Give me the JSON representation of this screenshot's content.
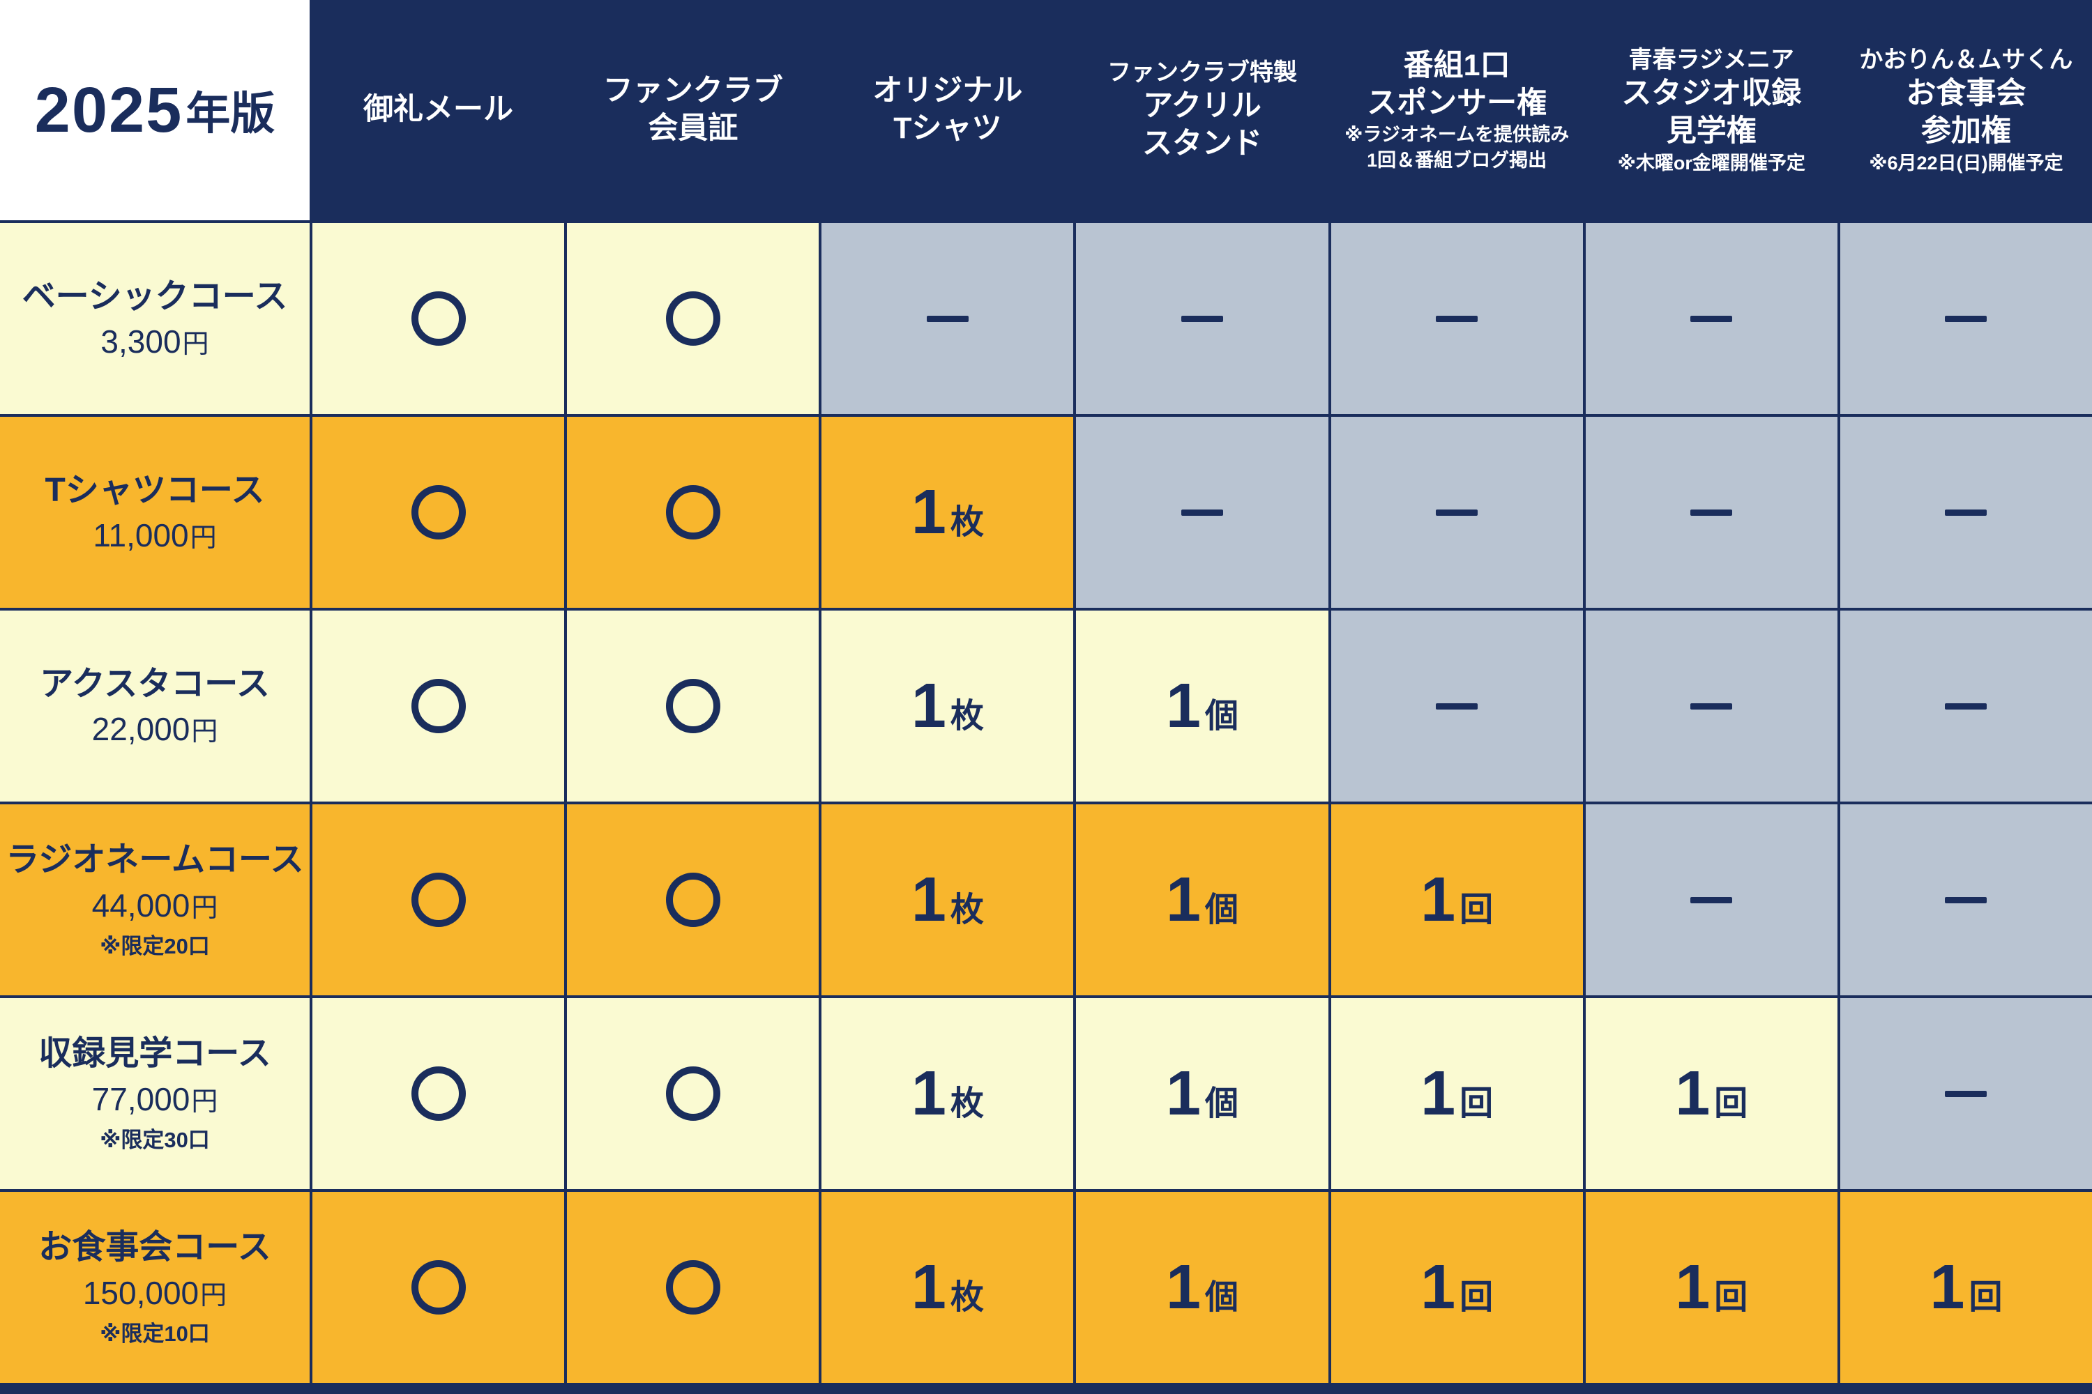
{
  "title": {
    "year": "2025",
    "suffix": "年版"
  },
  "colors": {
    "navy": "#1a2d5c",
    "cream": "#fafad2",
    "orange": "#f8b62d",
    "gray": "#b9c4d2",
    "header_text": "#ffffff"
  },
  "glyphs": {
    "dash": "—",
    "circle": "○"
  },
  "chart_data": {
    "type": "table",
    "title": "2025年版",
    "columns": [
      {
        "lines": [
          "御礼メール"
        ]
      },
      {
        "lines": [
          "ファンクラブ",
          "会員証"
        ]
      },
      {
        "lines": [
          "オリジナル",
          "Tシャツ"
        ]
      },
      {
        "top": "ファンクラブ特製",
        "lines": [
          "アクリル",
          "スタンド"
        ]
      },
      {
        "lines": [
          "番組1口",
          "スポンサー権"
        ],
        "notes": [
          "※ラジオネームを提供読み",
          "1回＆番組ブログ掲出"
        ]
      },
      {
        "top": "青春ラジメニア",
        "lines": [
          "スタジオ収録",
          "見学権"
        ],
        "notes": [
          "※木曜or金曜開催予定"
        ]
      },
      {
        "top": "かおりん＆ムサくん",
        "lines": [
          "お食事会",
          "参加権"
        ],
        "notes": [
          "※6月22日(日)開催予定"
        ]
      }
    ],
    "rows": [
      {
        "name": "ベーシックコース",
        "price": "3,300",
        "price_unit": "円",
        "limit": "",
        "theme": "cream",
        "cells": [
          {
            "t": "circle"
          },
          {
            "t": "circle"
          },
          {
            "t": "dash"
          },
          {
            "t": "dash"
          },
          {
            "t": "dash"
          },
          {
            "t": "dash"
          },
          {
            "t": "dash"
          }
        ]
      },
      {
        "name": "Tシャツコース",
        "price": "11,000",
        "price_unit": "円",
        "limit": "",
        "theme": "orange",
        "cells": [
          {
            "t": "circle"
          },
          {
            "t": "circle"
          },
          {
            "t": "num",
            "n": "1",
            "u": "枚"
          },
          {
            "t": "dash"
          },
          {
            "t": "dash"
          },
          {
            "t": "dash"
          },
          {
            "t": "dash"
          }
        ]
      },
      {
        "name": "アクスタコース",
        "price": "22,000",
        "price_unit": "円",
        "limit": "",
        "theme": "cream",
        "cells": [
          {
            "t": "circle"
          },
          {
            "t": "circle"
          },
          {
            "t": "num",
            "n": "1",
            "u": "枚"
          },
          {
            "t": "num",
            "n": "1",
            "u": "個"
          },
          {
            "t": "dash"
          },
          {
            "t": "dash"
          },
          {
            "t": "dash"
          }
        ]
      },
      {
        "name": "ラジオネームコース",
        "price": "44,000",
        "price_unit": "円",
        "limit": "※限定20口",
        "theme": "orange",
        "cells": [
          {
            "t": "circle"
          },
          {
            "t": "circle"
          },
          {
            "t": "num",
            "n": "1",
            "u": "枚"
          },
          {
            "t": "num",
            "n": "1",
            "u": "個"
          },
          {
            "t": "num",
            "n": "1",
            "u": "回"
          },
          {
            "t": "dash"
          },
          {
            "t": "dash"
          }
        ]
      },
      {
        "name": "収録見学コース",
        "price": "77,000",
        "price_unit": "円",
        "limit": "※限定30口",
        "theme": "cream",
        "cells": [
          {
            "t": "circle"
          },
          {
            "t": "circle"
          },
          {
            "t": "num",
            "n": "1",
            "u": "枚"
          },
          {
            "t": "num",
            "n": "1",
            "u": "個"
          },
          {
            "t": "num",
            "n": "1",
            "u": "回"
          },
          {
            "t": "num",
            "n": "1",
            "u": "回"
          },
          {
            "t": "dash"
          }
        ]
      },
      {
        "name": "お食事会コース",
        "price": "150,000",
        "price_unit": "円",
        "limit": "※限定10口",
        "theme": "orange",
        "cells": [
          {
            "t": "circle"
          },
          {
            "t": "circle"
          },
          {
            "t": "num",
            "n": "1",
            "u": "枚"
          },
          {
            "t": "num",
            "n": "1",
            "u": "個"
          },
          {
            "t": "num",
            "n": "1",
            "u": "回"
          },
          {
            "t": "num",
            "n": "1",
            "u": "回"
          },
          {
            "t": "num",
            "n": "1",
            "u": "回"
          }
        ]
      }
    ]
  }
}
